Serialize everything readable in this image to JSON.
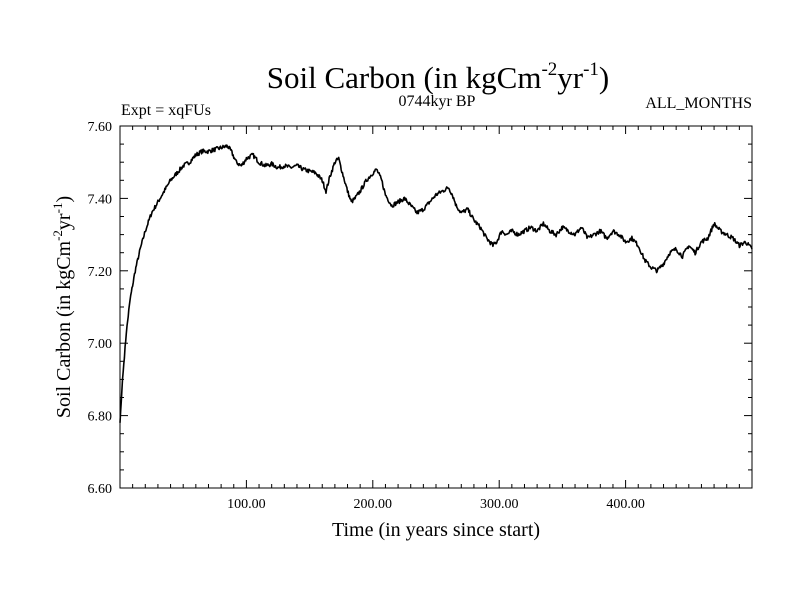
{
  "chart_data": {
    "type": "line",
    "title_main": "Soil Carbon (in kgCm",
    "title_sup1": "-2",
    "title_mid": "yr",
    "title_sup2": "-1",
    "title_end": ")",
    "subtitle_left": "Expt = xqFUs",
    "subtitle_center": "0744kyr BP",
    "subtitle_right": "ALL_MONTHS",
    "xlabel": "Time (in years since start)",
    "ylabel_main": "Soil Carbon (in kgCm",
    "ylabel_sup1": "-2",
    "ylabel_mid": "yr",
    "ylabel_sup2": "-1",
    "ylabel_end": ")",
    "xlim": [
      0,
      500
    ],
    "ylim": [
      6.6,
      7.6
    ],
    "x_ticks": [
      100,
      200,
      300,
      400
    ],
    "x_tick_labels": [
      "100.00",
      "200.00",
      "300.00",
      "400.00"
    ],
    "y_ticks": [
      6.6,
      6.8,
      7.0,
      7.2,
      7.4,
      7.6
    ],
    "y_tick_labels": [
      "6.60",
      "6.80",
      "7.00",
      "7.20",
      "7.40",
      "7.60"
    ],
    "series": [
      {
        "name": "Soil Carbon",
        "color": "#000000",
        "x": [
          0,
          2,
          5,
          8,
          12,
          16,
          20,
          25,
          30,
          35,
          40,
          45,
          50,
          55,
          60,
          65,
          70,
          75,
          80,
          85,
          88,
          92,
          96,
          100,
          105,
          110,
          115,
          120,
          125,
          130,
          135,
          140,
          145,
          150,
          155,
          160,
          163,
          166,
          170,
          173,
          176,
          180,
          183,
          186,
          190,
          195,
          200,
          203,
          207,
          210,
          215,
          220,
          225,
          230,
          235,
          240,
          245,
          250,
          255,
          260,
          263,
          266,
          270,
          275,
          280,
          285,
          290,
          295,
          298,
          302,
          306,
          310,
          315,
          320,
          325,
          330,
          335,
          340,
          345,
          350,
          355,
          360,
          365,
          370,
          375,
          380,
          385,
          390,
          395,
          400,
          405,
          410,
          415,
          420,
          425,
          430,
          435,
          440,
          445,
          450,
          455,
          460,
          465,
          470,
          475,
          480,
          485,
          490,
          495,
          500
        ],
        "y": [
          6.78,
          6.9,
          7.03,
          7.12,
          7.2,
          7.26,
          7.31,
          7.36,
          7.39,
          7.42,
          7.45,
          7.47,
          7.49,
          7.5,
          7.52,
          7.53,
          7.53,
          7.535,
          7.54,
          7.545,
          7.53,
          7.5,
          7.49,
          7.51,
          7.52,
          7.5,
          7.49,
          7.495,
          7.485,
          7.49,
          7.485,
          7.49,
          7.48,
          7.475,
          7.47,
          7.45,
          7.42,
          7.46,
          7.5,
          7.51,
          7.47,
          7.42,
          7.39,
          7.4,
          7.42,
          7.45,
          7.47,
          7.48,
          7.45,
          7.41,
          7.38,
          7.39,
          7.4,
          7.38,
          7.36,
          7.37,
          7.39,
          7.41,
          7.42,
          7.43,
          7.41,
          7.38,
          7.36,
          7.37,
          7.34,
          7.32,
          7.29,
          7.27,
          7.28,
          7.31,
          7.3,
          7.31,
          7.3,
          7.31,
          7.32,
          7.31,
          7.33,
          7.31,
          7.3,
          7.32,
          7.31,
          7.3,
          7.32,
          7.29,
          7.3,
          7.31,
          7.29,
          7.31,
          7.3,
          7.28,
          7.29,
          7.27,
          7.23,
          7.21,
          7.2,
          7.22,
          7.25,
          7.26,
          7.24,
          7.27,
          7.25,
          7.28,
          7.29,
          7.33,
          7.31,
          7.3,
          7.29,
          7.27,
          7.28,
          7.26
        ]
      }
    ]
  }
}
